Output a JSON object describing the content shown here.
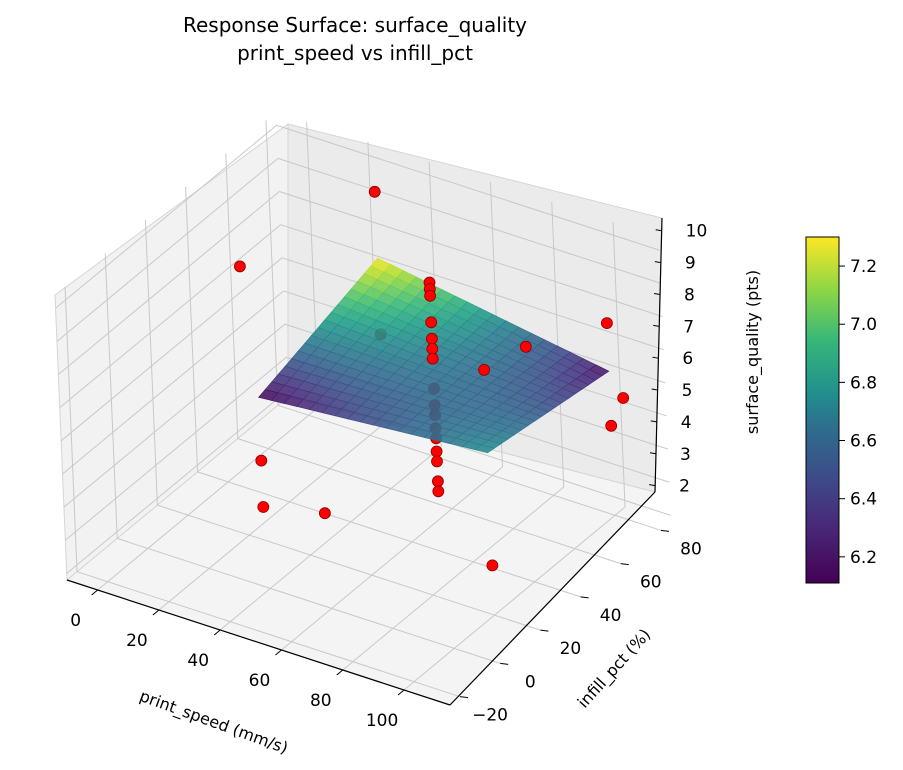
{
  "chart_data": {
    "type": "surface3d",
    "title": "Response Surface: surface_quality",
    "subtitle": "print_speed vs infill_pct",
    "xlabel": "print_speed (mm/s)",
    "ylabel": "infill_pct (%)",
    "zlabel": "surface_quality (pts)",
    "x_ticks": [
      "0",
      "20",
      "40",
      "60",
      "80",
      "100"
    ],
    "y_ticks": [
      "−20",
      "0",
      "20",
      "40",
      "60",
      "80"
    ],
    "z_ticks": [
      "2",
      "3",
      "4",
      "5",
      "6",
      "7",
      "8",
      "9",
      "10"
    ],
    "xlim": [
      -10,
      115
    ],
    "ylim": [
      -25,
      85
    ],
    "zlim": [
      1.8,
      10.4
    ],
    "grid": true,
    "colormap": "viridis",
    "colorbar": {
      "ticks": [
        "6.2",
        "6.4",
        "6.6",
        "6.8",
        "7.0",
        "7.2"
      ],
      "range": [
        6.11,
        7.3
      ]
    },
    "surface": {
      "x_range": [
        25,
        100
      ],
      "y_range": [
        20,
        80
      ],
      "corner_values": {
        "x25_y20": 6.11,
        "x100_y20": 6.7,
        "x25_y80": 7.3,
        "x100_y80": 6.15
      }
    },
    "points": [
      {
        "x": 25,
        "y": 20,
        "z": 4.2
      },
      {
        "x": 25,
        "y": 20,
        "z": 2.8
      },
      {
        "x": 25,
        "y": 80,
        "z": 9.3
      },
      {
        "x": 25,
        "y": 80,
        "z": 5.0
      },
      {
        "x": 100,
        "y": 20,
        "z": 9.2
      },
      {
        "x": 100,
        "y": 20,
        "z": 3.3
      },
      {
        "x": 100,
        "y": 80,
        "z": 7.6
      },
      {
        "x": 100,
        "y": 80,
        "z": 4.5
      },
      {
        "x": 62.5,
        "y": -5,
        "z": 5.0
      },
      {
        "x": 62.5,
        "y": 95,
        "z": 5.0
      },
      {
        "x": 0,
        "y": 50,
        "z": 7.8
      },
      {
        "x": 125,
        "y": 50,
        "z": 7.6
      },
      {
        "x": 62.5,
        "y": 50,
        "z": 9.2
      },
      {
        "x": 62.5,
        "y": 50,
        "z": 9.0
      },
      {
        "x": 62.5,
        "y": 50,
        "z": 8.8
      },
      {
        "x": 62.5,
        "y": 50,
        "z": 8.0
      },
      {
        "x": 62.5,
        "y": 50,
        "z": 7.5
      },
      {
        "x": 62.5,
        "y": 50,
        "z": 7.2
      },
      {
        "x": 62.5,
        "y": 50,
        "z": 6.9
      },
      {
        "x": 62.5,
        "y": 50,
        "z": 6.0
      },
      {
        "x": 62.5,
        "y": 50,
        "z": 5.5
      },
      {
        "x": 62.5,
        "y": 50,
        "z": 5.2
      },
      {
        "x": 62.5,
        "y": 50,
        "z": 4.8
      },
      {
        "x": 62.5,
        "y": 50,
        "z": 4.5
      },
      {
        "x": 62.5,
        "y": 50,
        "z": 4.1
      },
      {
        "x": 62.5,
        "y": 50,
        "z": 3.8
      },
      {
        "x": 62.5,
        "y": 50,
        "z": 3.2
      },
      {
        "x": 62.5,
        "y": 50,
        "z": 2.9
      }
    ]
  },
  "colors": {
    "pane_left": "#f3f3f3",
    "pane_back": "#ececec",
    "pane_floor": "#f4f4f4",
    "grid": "#c8c8c8",
    "point_fill": "#ff0000",
    "point_edge": "#8b0000"
  }
}
